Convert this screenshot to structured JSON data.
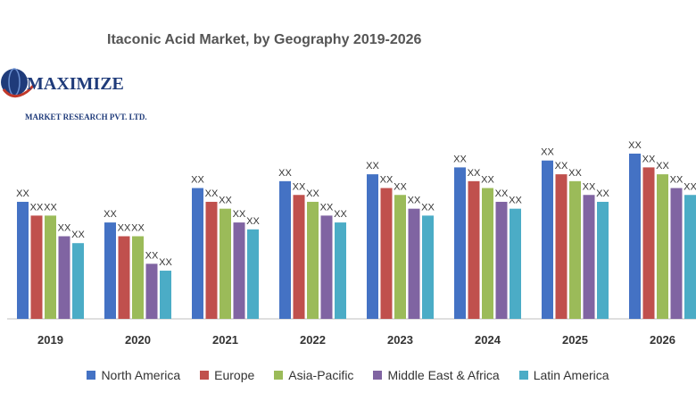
{
  "title": "Itaconic Acid Market, by Geography 2019-2026",
  "logo": {
    "name": "MAXIMIZE",
    "subtitle": "MARKET RESEARCH PVT. LTD."
  },
  "chart_data": {
    "type": "bar",
    "title": "Itaconic Acid Market, by Geography 2019-2026",
    "categories": [
      "2019",
      "2020",
      "2021",
      "2022",
      "2023",
      "2024",
      "2025",
      "2026"
    ],
    "series": [
      {
        "name": "North America",
        "color": "#4472c4",
        "values": [
          17,
          14,
          19,
          20,
          21,
          22,
          23,
          24
        ],
        "labels": [
          "XX",
          "XX",
          "XX",
          "XX",
          "XX",
          "XX",
          "XX",
          "XX"
        ]
      },
      {
        "name": "Europe",
        "color": "#c0504d",
        "values": [
          15,
          12,
          17,
          18,
          19,
          20,
          21,
          22
        ],
        "labels": [
          "XX",
          "XX",
          "XX",
          "XX",
          "XX",
          "XX",
          "XX",
          "XX"
        ]
      },
      {
        "name": "Asia-Pacific",
        "color": "#9bbb59",
        "values": [
          15,
          12,
          16,
          17,
          18,
          19,
          20,
          21
        ],
        "labels": [
          "XX",
          "XX",
          "XX",
          "XX",
          "XX",
          "XX",
          "XX",
          "XX"
        ]
      },
      {
        "name": "Middle East & Africa",
        "color": "#8064a2",
        "values": [
          12,
          8,
          14,
          15,
          16,
          17,
          18,
          19
        ],
        "labels": [
          "XX",
          "XX",
          "XX",
          "XX",
          "XX",
          "XX",
          "XX",
          "XX"
        ]
      },
      {
        "name": "Latin America",
        "color": "#4bacc6",
        "values": [
          11,
          7,
          13,
          14,
          15,
          16,
          17,
          18
        ],
        "labels": [
          "XX",
          "XX",
          "XX",
          "XX",
          "XX",
          "XX",
          "XX",
          "XX"
        ]
      }
    ],
    "ylim": [
      0,
      24
    ],
    "grid": false,
    "legend": "bottom"
  }
}
